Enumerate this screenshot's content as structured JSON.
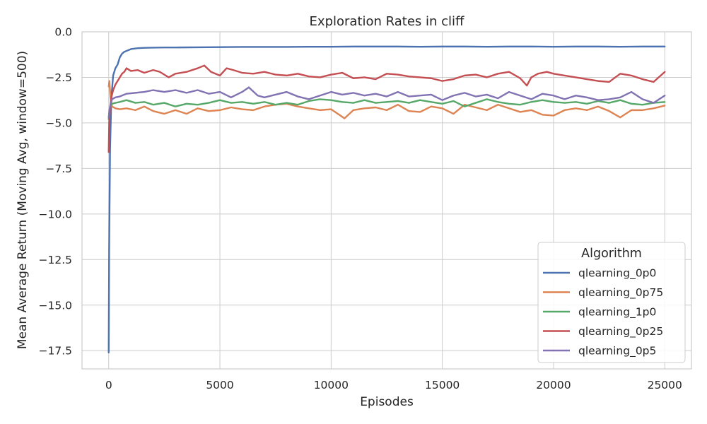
{
  "chart_data": {
    "type": "line",
    "title": "Exploration Rates in cliff",
    "xlabel": "Episodes",
    "ylabel": "Mean Average Return (Moving Avg, window=500)",
    "xlim": [
      -1200,
      26200
    ],
    "ylim": [
      -18.5,
      0
    ],
    "x_ticks": [
      0,
      5000,
      10000,
      15000,
      20000,
      25000
    ],
    "x_tick_labels": [
      "0",
      "5000",
      "10000",
      "15000",
      "20000",
      "25000"
    ],
    "y_ticks": [
      0,
      -2.5,
      -5,
      -7.5,
      -10,
      -12.5,
      -15,
      -17.5
    ],
    "y_tick_labels": [
      "0.0",
      "−2.5",
      "−5.0",
      "−7.5",
      "−10.0",
      "−12.5",
      "−15.0",
      "−17.5"
    ],
    "grid": true,
    "legend": {
      "title": "Algorithm",
      "placement": "lower-right",
      "entries": [
        "qlearning_0p0",
        "qlearning_0p75",
        "qlearning_1p0",
        "qlearning_0p25",
        "qlearning_0p5"
      ]
    },
    "series": [
      {
        "name": "qlearning_0p0",
        "color": "#4c72b0",
        "x": [
          0,
          20,
          60,
          120,
          200,
          300,
          400,
          500,
          600,
          700,
          800,
          1000,
          1300,
          1600,
          2000,
          2500,
          3000,
          4000,
          5000,
          6000,
          7000,
          8000,
          9000,
          10000,
          11000,
          12000,
          13000,
          14000,
          15000,
          16000,
          17000,
          18000,
          19000,
          20000,
          21000,
          22000,
          23000,
          24000,
          25000
        ],
        "y": [
          -17.6,
          -12.0,
          -6.5,
          -3.6,
          -2.4,
          -2.0,
          -1.8,
          -1.4,
          -1.2,
          -1.1,
          -1.05,
          -0.95,
          -0.9,
          -0.88,
          -0.87,
          -0.86,
          -0.86,
          -0.85,
          -0.84,
          -0.83,
          -0.83,
          -0.83,
          -0.82,
          -0.82,
          -0.81,
          -0.81,
          -0.81,
          -0.82,
          -0.81,
          -0.81,
          -0.82,
          -0.81,
          -0.81,
          -0.82,
          -0.81,
          -0.81,
          -0.82,
          -0.81,
          -0.81
        ]
      },
      {
        "name": "qlearning_0p75",
        "color": "#dd8452",
        "x": [
          0,
          30,
          80,
          150,
          300,
          500,
          800,
          1200,
          1600,
          2000,
          2500,
          3000,
          3500,
          4000,
          4500,
          5000,
          5500,
          6000,
          6500,
          7000,
          7500,
          8000,
          8500,
          9000,
          9500,
          10000,
          10300,
          10600,
          11000,
          11500,
          12000,
          12500,
          13000,
          13500,
          14000,
          14500,
          15000,
          15500,
          16000,
          16500,
          17000,
          17500,
          18000,
          18500,
          19000,
          19500,
          20000,
          20500,
          21000,
          21500,
          22000,
          22500,
          23000,
          23500,
          24000,
          24500,
          25000
        ],
        "y": [
          -3.0,
          -2.7,
          -3.6,
          -4.1,
          -4.2,
          -4.25,
          -4.2,
          -4.3,
          -4.1,
          -4.35,
          -4.5,
          -4.3,
          -4.5,
          -4.2,
          -4.35,
          -4.3,
          -4.15,
          -4.25,
          -4.3,
          -4.1,
          -4.0,
          -3.95,
          -4.1,
          -4.2,
          -4.3,
          -4.25,
          -4.5,
          -4.75,
          -4.3,
          -4.2,
          -4.15,
          -4.3,
          -4.0,
          -4.35,
          -4.4,
          -4.1,
          -4.2,
          -4.5,
          -4.0,
          -4.15,
          -4.3,
          -4.0,
          -4.2,
          -4.4,
          -4.3,
          -4.55,
          -4.6,
          -4.3,
          -4.2,
          -4.3,
          -4.1,
          -4.35,
          -4.7,
          -4.3,
          -4.3,
          -4.2,
          -4.05
        ]
      },
      {
        "name": "qlearning_1p0",
        "color": "#55a868",
        "x": [
          0,
          30,
          80,
          150,
          300,
          500,
          800,
          1200,
          1600,
          2000,
          2500,
          3000,
          3500,
          4000,
          4500,
          5000,
          5500,
          6000,
          6500,
          7000,
          7500,
          8000,
          8500,
          9000,
          9500,
          10000,
          10500,
          11000,
          11500,
          12000,
          12500,
          13000,
          13500,
          14000,
          14500,
          15000,
          15500,
          16000,
          16500,
          17000,
          17500,
          18000,
          18500,
          19000,
          19500,
          20000,
          20500,
          21000,
          21500,
          22000,
          22500,
          23000,
          23500,
          24000,
          24500,
          25000
        ],
        "y": [
          -4.8,
          -4.4,
          -4.1,
          -3.95,
          -3.9,
          -3.85,
          -3.75,
          -3.9,
          -3.85,
          -4.0,
          -3.9,
          -4.1,
          -3.95,
          -4.0,
          -3.9,
          -3.75,
          -3.9,
          -3.85,
          -3.95,
          -3.85,
          -4.0,
          -3.9,
          -4.0,
          -3.8,
          -3.7,
          -3.75,
          -3.85,
          -3.9,
          -3.75,
          -3.9,
          -3.85,
          -3.8,
          -3.9,
          -3.75,
          -3.85,
          -3.95,
          -3.8,
          -4.1,
          -3.9,
          -3.7,
          -3.85,
          -3.95,
          -4.0,
          -3.85,
          -3.75,
          -3.85,
          -3.9,
          -3.85,
          -3.95,
          -3.8,
          -3.9,
          -3.75,
          -3.95,
          -4.0,
          -3.9,
          -3.85
        ]
      },
      {
        "name": "qlearning_0p25",
        "color": "#c44e52",
        "x": [
          0,
          20,
          60,
          120,
          200,
          300,
          400,
          500,
          600,
          700,
          800,
          1000,
          1300,
          1600,
          2000,
          2300,
          2700,
          3000,
          3500,
          4000,
          4300,
          4600,
          5000,
          5300,
          5600,
          6000,
          6500,
          7000,
          7500,
          8000,
          8500,
          9000,
          9500,
          10000,
          10500,
          11000,
          11500,
          12000,
          12500,
          13000,
          13500,
          14000,
          14500,
          15000,
          15500,
          16000,
          16500,
          17000,
          17500,
          18000,
          18500,
          18800,
          19000,
          19300,
          19700,
          20000,
          20500,
          21000,
          21500,
          22000,
          22500,
          23000,
          23500,
          24000,
          24500,
          25000
        ],
        "y": [
          -6.6,
          -5.0,
          -4.2,
          -3.6,
          -3.2,
          -2.9,
          -2.7,
          -2.5,
          -2.3,
          -2.2,
          -2.0,
          -2.15,
          -2.1,
          -2.25,
          -2.1,
          -2.2,
          -2.5,
          -2.3,
          -2.2,
          -2.0,
          -1.85,
          -2.2,
          -2.4,
          -2.0,
          -2.1,
          -2.25,
          -2.3,
          -2.2,
          -2.35,
          -2.4,
          -2.3,
          -2.45,
          -2.5,
          -2.35,
          -2.25,
          -2.55,
          -2.5,
          -2.6,
          -2.3,
          -2.35,
          -2.45,
          -2.5,
          -2.55,
          -2.7,
          -2.6,
          -2.4,
          -2.35,
          -2.5,
          -2.3,
          -2.2,
          -2.55,
          -2.95,
          -2.5,
          -2.3,
          -2.2,
          -2.3,
          -2.4,
          -2.5,
          -2.6,
          -2.7,
          -2.75,
          -2.3,
          -2.4,
          -2.6,
          -2.75,
          -2.2
        ]
      },
      {
        "name": "qlearning_0p5",
        "color": "#8172b2",
        "x": [
          0,
          30,
          80,
          150,
          300,
          500,
          800,
          1200,
          1600,
          2000,
          2500,
          3000,
          3500,
          4000,
          4500,
          5000,
          5500,
          6000,
          6300,
          6700,
          7000,
          7500,
          8000,
          8500,
          9000,
          9500,
          10000,
          10500,
          11000,
          11500,
          12000,
          12500,
          13000,
          13500,
          14000,
          14500,
          15000,
          15500,
          16000,
          16500,
          17000,
          17500,
          18000,
          18500,
          19000,
          19500,
          20000,
          20500,
          21000,
          21500,
          22000,
          22500,
          23000,
          23500,
          24000,
          24500,
          25000
        ],
        "y": [
          -4.7,
          -4.3,
          -4.0,
          -3.7,
          -3.6,
          -3.55,
          -3.4,
          -3.35,
          -3.3,
          -3.2,
          -3.3,
          -3.2,
          -3.35,
          -3.2,
          -3.4,
          -3.3,
          -3.6,
          -3.3,
          -3.05,
          -3.5,
          -3.6,
          -3.45,
          -3.3,
          -3.55,
          -3.7,
          -3.5,
          -3.3,
          -3.45,
          -3.35,
          -3.5,
          -3.4,
          -3.55,
          -3.3,
          -3.55,
          -3.5,
          -3.45,
          -3.75,
          -3.5,
          -3.35,
          -3.55,
          -3.45,
          -3.65,
          -3.3,
          -3.5,
          -3.7,
          -3.4,
          -3.5,
          -3.7,
          -3.5,
          -3.6,
          -3.75,
          -3.7,
          -3.6,
          -3.3,
          -3.7,
          -3.9,
          -3.5
        ]
      }
    ]
  }
}
